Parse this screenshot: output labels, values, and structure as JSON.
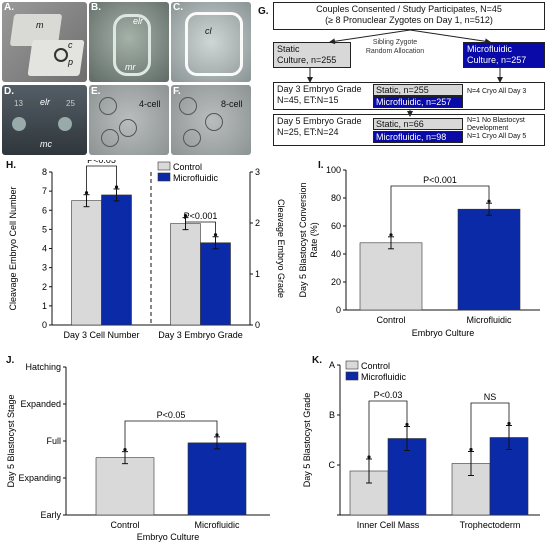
{
  "panel_labels": {
    "A": "A.",
    "B": "B.",
    "C": "C.",
    "D": "D.",
    "E": "E.",
    "F": "F.",
    "G": "G.",
    "H": "H.",
    "I": "I.",
    "J": "J.",
    "K": "K."
  },
  "photos": {
    "A": {
      "labels": [
        "m",
        "c",
        "p"
      ]
    },
    "B": {
      "labels": [
        "elr",
        "mr"
      ]
    },
    "C": {
      "labels": [
        "cl"
      ]
    },
    "D": {
      "labels": [
        "elr",
        "mc",
        "13",
        "25"
      ]
    },
    "E": {
      "labels": [
        "4-cell"
      ]
    },
    "F": {
      "labels": [
        "8-cell"
      ]
    }
  },
  "flow": {
    "top_line1": "Couples Consented / Study Participates, N=45",
    "top_line2": "(≥ 8 Pronuclear Zygotes on Day 1, n=512)",
    "sibling": "Sibling Zygote",
    "random": "Random Allocation",
    "static_line1": "Static",
    "static_line2": "Culture, n=255",
    "micro_line1": "Microfluidic",
    "micro_line2": "Culture, n=257",
    "d3_left1": "Day 3 Embryo Grade",
    "d3_left2": "N=45, ET:N=15",
    "d3_static": "Static, n=255",
    "d3_micro": "Microfluidic, n=257",
    "d3_right": "N=4 Cryo All Day 3",
    "d5_left1": "Day 5 Embryo Grade",
    "d5_left2": "N=25, ET:N=24",
    "d5_static": "Static, n=66",
    "d5_micro": "Microfluidic, n=98",
    "d5_right1": "N=1 No Blastocyst",
    "d5_right2": "Development",
    "d5_right3": "N=1 Cryo All Day 5"
  },
  "colors": {
    "control": "#d9d9d9",
    "microfluidic": "#0a2aa8",
    "navy_box": "#0a0aa8"
  },
  "chart_data": [
    {
      "id": "H",
      "type": "bar",
      "categories": [
        "Day 3 Cell Number",
        "Day 3 Embryo Grade"
      ],
      "series": [
        {
          "name": "Control",
          "values": [
            6.5,
            5.3
          ]
        },
        {
          "name": "Microfluidic",
          "values": [
            6.8,
            4.3
          ]
        }
      ],
      "left_axis": {
        "label": "Cleavage Embryo Cell Number",
        "ylim": [
          0,
          8
        ],
        "ticks": [
          0,
          1,
          2,
          3,
          4,
          5,
          6,
          7,
          8
        ]
      },
      "right_axis": {
        "label": "Cleavage Embryo Grade",
        "ylim": [
          0,
          3
        ],
        "ticks": [
          0,
          1,
          2,
          3
        ]
      },
      "annotations": [
        "P<0.05",
        "P<0.001"
      ],
      "legend": "top-right",
      "grid": false
    },
    {
      "id": "I",
      "type": "bar",
      "categories": [
        "Control",
        "Microfluidic"
      ],
      "values": [
        48,
        72
      ],
      "ylabel": "Day 5 Blastocyst Conversion Rate (%)",
      "xlabel": "Embryo Culture",
      "ylim": [
        0,
        100
      ],
      "ticks": [
        0,
        20,
        40,
        60,
        80,
        100
      ],
      "annotations": [
        "P<0.001"
      ],
      "grid": false
    },
    {
      "id": "J",
      "type": "bar",
      "categories": [
        "Control",
        "Microfluidic"
      ],
      "values": [
        1.55,
        1.95
      ],
      "ylabel": "Day 5 Blastocyst Stage",
      "xlabel": "Embryo Culture",
      "ylim": [
        0,
        4
      ],
      "tick_labels": [
        "Early",
        "Expanding",
        "Full",
        "Expanded",
        "Hatching"
      ],
      "annotations": [
        "P<0.05"
      ],
      "grid": false
    },
    {
      "id": "K",
      "type": "bar",
      "categories": [
        "Inner Cell Mass",
        "Trophectoderm"
      ],
      "series": [
        {
          "name": "Control",
          "values": [
            0.88,
            1.03
          ]
        },
        {
          "name": "Microfluidic",
          "values": [
            1.53,
            1.55
          ]
        }
      ],
      "ylabel": "Day 5 Blastocyst Grade",
      "ylim": [
        0,
        3
      ],
      "tick_labels": [
        "",
        "C",
        "B",
        "A"
      ],
      "annotations": [
        "P<0.03",
        "NS"
      ],
      "legend": "top-left",
      "grid": false
    }
  ]
}
